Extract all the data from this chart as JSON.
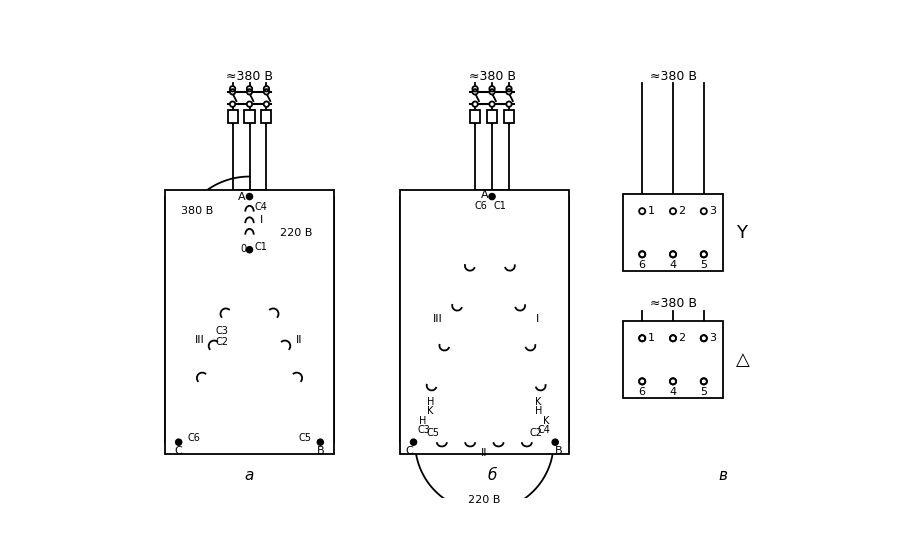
{
  "bg_color": "#ffffff",
  "line_color": "#000000",
  "title_a": "а",
  "title_b": "б",
  "title_c": "в",
  "label_380_a": "≈380 В",
  "label_380_b": "≈380 В",
  "label_380_v1": "≈380 В",
  "label_380_v2": "≈380 В",
  "label_380_inner_a": "380 В",
  "label_220_a": "220 В",
  "label_220_b": "220 В",
  "label_A": "A",
  "label_B": "B",
  "label_C": "C",
  "label_I": "I",
  "label_II": "II",
  "label_III": "III",
  "label_0": "0",
  "label_C1": "C1",
  "label_C2": "C2",
  "label_C3": "C3",
  "label_C4": "C4",
  "label_C5": "C5",
  "label_C6": "C6",
  "label_H": "H",
  "label_K": "K",
  "star_symbol": "Y",
  "delta_symbol": "△"
}
